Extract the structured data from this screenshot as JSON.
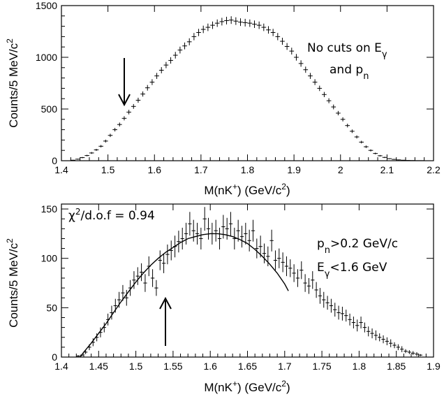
{
  "chart_data": [
    {
      "type": "scatter",
      "panel": "top",
      "xlabel": "M(nK+) (GeV/c2)",
      "ylabel": "Counts/5 MeV/c2",
      "xlim": [
        1.4,
        2.2
      ],
      "ylim": [
        0,
        1500
      ],
      "xticks": [
        1.4,
        1.5,
        1.6,
        1.7,
        1.8,
        1.9,
        2.0,
        2.1,
        2.2
      ],
      "xtick_labels": [
        "1.4",
        "1.5",
        "1.6",
        "1.7",
        "1.8",
        "1.9",
        "2",
        "2.1",
        "2.2"
      ],
      "yticks": [
        0,
        500,
        1000,
        1500
      ],
      "ytick_labels": [
        "0",
        "500",
        "1000",
        "1500"
      ],
      "annotations": [
        "No cuts on E",
        "and p"
      ],
      "arrow": {
        "x": 1.54,
        "direction": "down"
      },
      "series": [
        {
          "error_bars": true,
          "x": [
            1.425,
            1.435,
            1.445,
            1.455,
            1.465,
            1.475,
            1.485,
            1.495,
            1.505,
            1.515,
            1.525,
            1.535,
            1.545,
            1.555,
            1.565,
            1.575,
            1.585,
            1.595,
            1.605,
            1.615,
            1.625,
            1.635,
            1.645,
            1.655,
            1.665,
            1.675,
            1.685,
            1.695,
            1.705,
            1.715,
            1.725,
            1.735,
            1.745,
            1.755,
            1.765,
            1.775,
            1.785,
            1.795,
            1.805,
            1.815,
            1.825,
            1.835,
            1.845,
            1.855,
            1.865,
            1.875,
            1.885,
            1.895,
            1.905,
            1.915,
            1.925,
            1.935,
            1.945,
            1.955,
            1.965,
            1.975,
            1.985,
            1.995,
            2.005,
            2.015,
            2.025,
            2.035,
            2.045,
            2.055,
            2.065,
            2.075,
            2.085,
            2.095,
            2.105,
            2.115,
            2.125,
            2.135,
            2.145,
            2.155,
            2.165,
            2.175,
            2.185,
            2.195
          ],
          "y": [
            5,
            15,
            30,
            50,
            75,
            105,
            140,
            190,
            245,
            300,
            350,
            410,
            470,
            525,
            585,
            645,
            705,
            760,
            820,
            875,
            925,
            970,
            1020,
            1070,
            1110,
            1150,
            1200,
            1240,
            1270,
            1290,
            1310,
            1330,
            1345,
            1355,
            1360,
            1350,
            1340,
            1335,
            1330,
            1320,
            1310,
            1290,
            1265,
            1240,
            1200,
            1155,
            1105,
            1060,
            1000,
            940,
            880,
            820,
            760,
            700,
            640,
            580,
            520,
            460,
            400,
            340,
            285,
            230,
            180,
            135,
            100,
            70,
            48,
            32,
            20,
            13,
            8,
            5,
            3,
            2,
            1,
            1,
            0,
            0
          ],
          "err": [
            3,
            4,
            6,
            7,
            9,
            10,
            12,
            14,
            16,
            17,
            19,
            20,
            22,
            23,
            24,
            25,
            27,
            28,
            29,
            30,
            30,
            31,
            32,
            33,
            33,
            34,
            35,
            35,
            36,
            36,
            36,
            36,
            37,
            37,
            37,
            37,
            37,
            37,
            36,
            36,
            36,
            36,
            36,
            35,
            35,
            34,
            33,
            33,
            32,
            31,
            30,
            29,
            28,
            26,
            25,
            24,
            23,
            21,
            20,
            18,
            17,
            15,
            13,
            12,
            10,
            8,
            7,
            6,
            4,
            4,
            3,
            2,
            2,
            1,
            1,
            1,
            1,
            1
          ]
        }
      ]
    },
    {
      "type": "scatter",
      "panel": "bottom",
      "xlabel": "M(nK+) (GeV/c2)",
      "ylabel": "Counts/5 MeV/c2",
      "xlim": [
        1.4,
        1.9
      ],
      "ylim": [
        0,
        155
      ],
      "xticks": [
        1.4,
        1.45,
        1.5,
        1.55,
        1.6,
        1.65,
        1.7,
        1.75,
        1.8,
        1.85,
        1.9
      ],
      "xtick_labels": [
        "1.4",
        "1.45",
        "1.5",
        "1.55",
        "1.6",
        "1.65",
        "1.7",
        "1.75",
        "1.8",
        "1.85",
        "1.9"
      ],
      "yticks": [
        0,
        50,
        100,
        150
      ],
      "ytick_labels": [
        "0",
        "50",
        "100",
        "150"
      ],
      "annotations": [
        "χ²/d.o.f = 0.94",
        "p",
        ">0.2 GeV/c",
        "E",
        "<1.6 GeV"
      ],
      "arrow": {
        "x": 1.54,
        "direction": "up"
      },
      "series": [
        {
          "error_bars": true,
          "x": [
            1.4225,
            1.4275,
            1.4325,
            1.4375,
            1.4425,
            1.4475,
            1.4525,
            1.4575,
            1.4625,
            1.4675,
            1.4725,
            1.4775,
            1.4825,
            1.4875,
            1.4925,
            1.4975,
            1.5025,
            1.5075,
            1.5125,
            1.5175,
            1.5225,
            1.5275,
            1.5325,
            1.5375,
            1.5425,
            1.5475,
            1.5525,
            1.5575,
            1.5625,
            1.5675,
            1.5725,
            1.5775,
            1.5825,
            1.5875,
            1.5925,
            1.5975,
            1.6025,
            1.6075,
            1.6125,
            1.6175,
            1.6225,
            1.6275,
            1.6325,
            1.6375,
            1.6425,
            1.6475,
            1.6525,
            1.6575,
            1.6625,
            1.6675,
            1.6725,
            1.6775,
            1.6825,
            1.6875,
            1.6925,
            1.6975,
            1.7025,
            1.7075,
            1.7125,
            1.7175,
            1.7225,
            1.7275,
            1.7325,
            1.7375,
            1.7425,
            1.7475,
            1.7525,
            1.7575,
            1.7625,
            1.7675,
            1.7725,
            1.7775,
            1.7825,
            1.7875,
            1.7925,
            1.7975,
            1.8025,
            1.8075,
            1.8125,
            1.8175,
            1.8225,
            1.8275,
            1.8325,
            1.8375,
            1.8425,
            1.8475,
            1.8525,
            1.8575,
            1.8625,
            1.8675,
            1.8725,
            1.8775,
            1.8825
          ],
          "y": [
            1,
            2,
            5,
            10,
            15,
            20,
            25,
            30,
            38,
            45,
            52,
            58,
            65,
            60,
            70,
            78,
            82,
            86,
            75,
            92,
            80,
            70,
            98,
            95,
            104,
            108,
            112,
            117,
            120,
            125,
            135,
            128,
            125,
            120,
            140,
            130,
            125,
            128,
            120,
            132,
            130,
            135,
            120,
            128,
            122,
            125,
            118,
            128,
            110,
            112,
            105,
            102,
            118,
            98,
            100,
            96,
            92,
            90,
            85,
            80,
            88,
            75,
            72,
            78,
            68,
            62,
            58,
            55,
            52,
            48,
            45,
            44,
            42,
            38,
            35,
            32,
            35,
            30,
            26,
            24,
            22,
            20,
            18,
            16,
            14,
            12,
            10,
            8,
            6,
            5,
            4,
            3,
            2
          ],
          "err": [
            1,
            1,
            2,
            3,
            4,
            4,
            5,
            5,
            6,
            7,
            7,
            8,
            8,
            8,
            8,
            9,
            9,
            9,
            9,
            10,
            9,
            8,
            10,
            10,
            10,
            10,
            11,
            11,
            11,
            11,
            12,
            11,
            11,
            11,
            12,
            11,
            11,
            11,
            11,
            12,
            11,
            12,
            11,
            11,
            11,
            11,
            11,
            11,
            10,
            11,
            10,
            10,
            11,
            10,
            10,
            10,
            10,
            9,
            9,
            9,
            9,
            9,
            8,
            9,
            8,
            8,
            8,
            7,
            7,
            7,
            7,
            7,
            6,
            6,
            6,
            6,
            6,
            5,
            5,
            5,
            5,
            4,
            4,
            4,
            4,
            3,
            3,
            3,
            2,
            2,
            2,
            2,
            1
          ]
        },
        {
          "fit_curve": true,
          "x": [
            1.425,
            1.43,
            1.44,
            1.45,
            1.46,
            1.47,
            1.48,
            1.49,
            1.5,
            1.51,
            1.52,
            1.53,
            1.54,
            1.55,
            1.56,
            1.57,
            1.58,
            1.59,
            1.6,
            1.61,
            1.62,
            1.63,
            1.64,
            1.65,
            1.66,
            1.67,
            1.68,
            1.69,
            1.7,
            1.705
          ],
          "y": [
            0,
            5,
            14,
            24,
            34,
            45,
            56,
            66,
            76,
            85,
            93,
            100,
            106,
            111,
            116,
            120,
            122,
            124,
            125,
            125,
            124,
            122,
            119,
            115,
            109,
            102,
            94,
            85,
            74,
            67
          ]
        }
      ]
    }
  ]
}
